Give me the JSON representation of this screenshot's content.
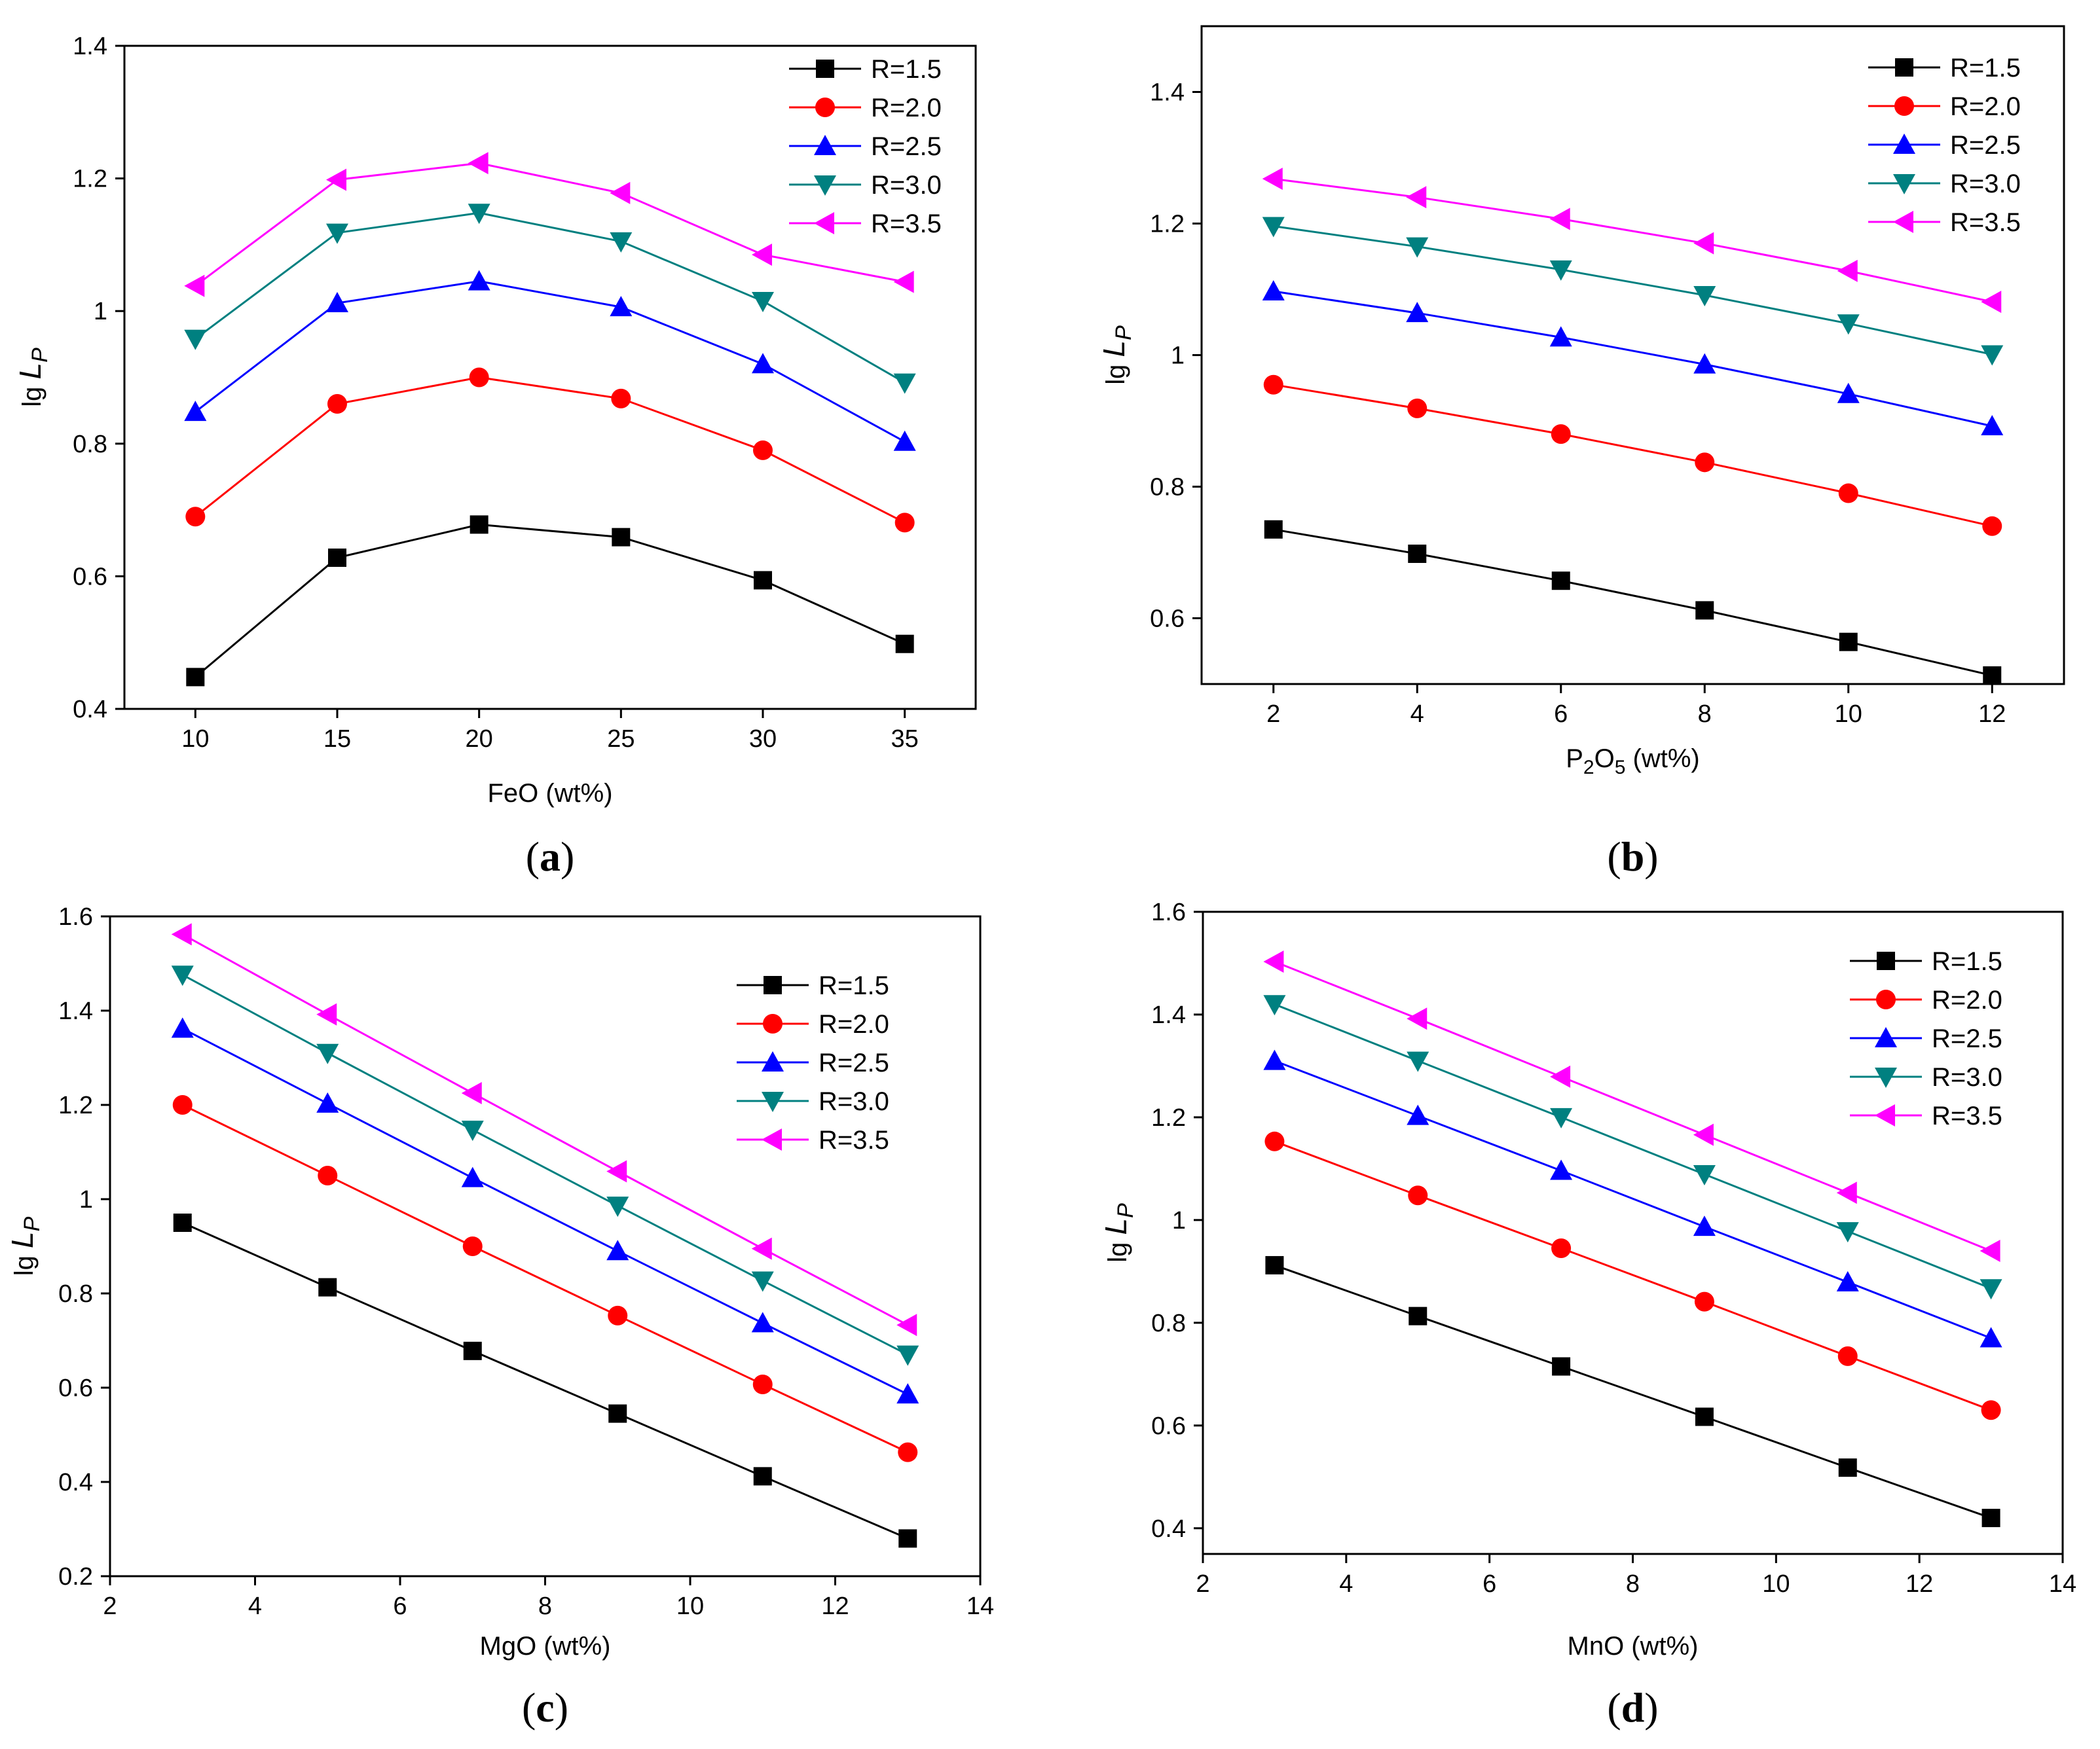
{
  "chart_data": [
    {
      "type": "line",
      "panel_label": "(a)",
      "panel_letter": "a",
      "xlabel": "FeO (wt%)",
      "ylabel_prefix": "lg ",
      "ylabel_main": "L",
      "ylabel_sub": "P",
      "xlim": [
        7.5,
        37.5
      ],
      "ylim": [
        0.4,
        1.4
      ],
      "xticks": [
        10,
        15,
        20,
        25,
        30,
        35
      ],
      "yticks": [
        0.4,
        0.6,
        0.8,
        1.0,
        1.2,
        1.4
      ],
      "x": [
        10,
        15,
        20,
        25,
        30,
        35
      ],
      "legend_position": "top-right",
      "series": [
        {
          "name": "R=1.5",
          "color": "#000000",
          "marker": "square",
          "values": [
            0.448,
            0.628,
            0.678,
            0.659,
            0.594,
            0.498
          ]
        },
        {
          "name": "R=2.0",
          "color": "#ff0000",
          "marker": "circle",
          "values": [
            0.69,
            0.86,
            0.9,
            0.868,
            0.79,
            0.681
          ]
        },
        {
          "name": "R=2.5",
          "color": "#0000ff",
          "marker": "triangle-up",
          "values": [
            0.848,
            1.012,
            1.045,
            1.006,
            0.92,
            0.803
          ]
        },
        {
          "name": "R=3.0",
          "color": "#008080",
          "marker": "triangle-down",
          "values": [
            0.958,
            1.118,
            1.148,
            1.105,
            1.015,
            0.892
          ]
        },
        {
          "name": "R=3.5",
          "color": "#ff00ff",
          "marker": "triangle-left",
          "values": [
            1.038,
            1.198,
            1.223,
            1.178,
            1.085,
            1.044
          ]
        }
      ]
    },
    {
      "type": "line",
      "panel_label": "(b)",
      "panel_letter": "b",
      "xlabel_main": "P",
      "xlabel_sub1": "2",
      "xlabel_mid": "O",
      "xlabel_sub2": "5",
      "xlabel_rest": " (wt%)",
      "ylabel_prefix": "lg ",
      "ylabel_main": "L",
      "ylabel_sub": "P",
      "xlim": [
        1,
        13
      ],
      "ylim": [
        0.5,
        1.5
      ],
      "xticks": [
        2,
        4,
        6,
        8,
        10,
        12
      ],
      "yticks": [
        0.6,
        0.8,
        1.0,
        1.2,
        1.4
      ],
      "x": [
        2,
        4,
        6,
        8,
        10,
        12
      ],
      "legend_position": "top-right",
      "series": [
        {
          "name": "R=1.5",
          "color": "#000000",
          "marker": "square",
          "values": [
            0.735,
            0.698,
            0.657,
            0.612,
            0.564,
            0.513
          ]
        },
        {
          "name": "R=2.0",
          "color": "#ff0000",
          "marker": "circle",
          "values": [
            0.955,
            0.919,
            0.88,
            0.837,
            0.79,
            0.74
          ]
        },
        {
          "name": "R=2.5",
          "color": "#0000ff",
          "marker": "triangle-up",
          "values": [
            1.097,
            1.064,
            1.027,
            0.986,
            0.941,
            0.892
          ]
        },
        {
          "name": "R=3.0",
          "color": "#008080",
          "marker": "triangle-down",
          "values": [
            1.196,
            1.165,
            1.13,
            1.091,
            1.048,
            1.001
          ]
        },
        {
          "name": "R=3.5",
          "color": "#ff00ff",
          "marker": "triangle-left",
          "values": [
            1.268,
            1.24,
            1.207,
            1.17,
            1.128,
            1.081
          ]
        }
      ]
    },
    {
      "type": "line",
      "panel_label": "(c)",
      "panel_letter": "c",
      "xlabel": "MgO (wt%)",
      "ylabel_prefix": "lg ",
      "ylabel_main": "L",
      "ylabel_sub": "P",
      "xlim": [
        2,
        14
      ],
      "ylim": [
        0.2,
        1.6
      ],
      "xticks": [
        2,
        4,
        6,
        8,
        10,
        12,
        14
      ],
      "yticks": [
        0.2,
        0.4,
        0.6,
        0.8,
        1.0,
        1.2,
        1.4,
        1.6
      ],
      "x": [
        3,
        5,
        7,
        9,
        11,
        13
      ],
      "legend_position": "right",
      "series": [
        {
          "name": "R=1.5",
          "color": "#000000",
          "marker": "square",
          "values": [
            0.95,
            0.813,
            0.678,
            0.545,
            0.412,
            0.28
          ]
        },
        {
          "name": "R=2.0",
          "color": "#ff0000",
          "marker": "circle",
          "values": [
            1.2,
            1.05,
            0.9,
            0.753,
            0.607,
            0.463
          ]
        },
        {
          "name": "R=2.5",
          "color": "#0000ff",
          "marker": "triangle-up",
          "values": [
            1.362,
            1.203,
            1.045,
            0.89,
            0.737,
            0.586
          ]
        },
        {
          "name": "R=3.0",
          "color": "#008080",
          "marker": "triangle-down",
          "values": [
            1.476,
            1.31,
            1.147,
            0.986,
            0.827,
            0.67
          ]
        },
        {
          "name": "R=3.5",
          "color": "#ff00ff",
          "marker": "triangle-left",
          "values": [
            1.562,
            1.392,
            1.225,
            1.059,
            0.895,
            0.733
          ]
        }
      ]
    },
    {
      "type": "line",
      "panel_label": "(d)",
      "panel_letter": "d",
      "xlabel": "MnO (wt%)",
      "ylabel_prefix": "lg ",
      "ylabel_main": "L",
      "ylabel_sub": "P",
      "xlim": [
        2,
        14
      ],
      "ylim": [
        0.35,
        1.6
      ],
      "xticks": [
        2,
        4,
        6,
        8,
        10,
        12,
        14
      ],
      "yticks": [
        0.4,
        0.6,
        0.8,
        1.0,
        1.2,
        1.4,
        1.6
      ],
      "x": [
        3,
        5,
        7,
        9,
        11,
        13
      ],
      "legend_position": "top-right",
      "series": [
        {
          "name": "R=1.5",
          "color": "#000000",
          "marker": "square",
          "values": [
            0.912,
            0.813,
            0.715,
            0.617,
            0.518,
            0.42
          ]
        },
        {
          "name": "R=2.0",
          "color": "#ff0000",
          "marker": "circle",
          "values": [
            1.153,
            1.048,
            0.945,
            0.841,
            0.735,
            0.63
          ]
        },
        {
          "name": "R=2.5",
          "color": "#0000ff",
          "marker": "triangle-up",
          "values": [
            1.31,
            1.203,
            1.096,
            0.987,
            0.879,
            0.77
          ]
        },
        {
          "name": "R=3.0",
          "color": "#008080",
          "marker": "triangle-down",
          "values": [
            1.42,
            1.31,
            1.2,
            1.089,
            0.978,
            0.867
          ]
        },
        {
          "name": "R=3.5",
          "color": "#ff00ff",
          "marker": "triangle-left",
          "values": [
            1.503,
            1.392,
            1.279,
            1.166,
            1.053,
            0.94
          ]
        }
      ]
    }
  ]
}
